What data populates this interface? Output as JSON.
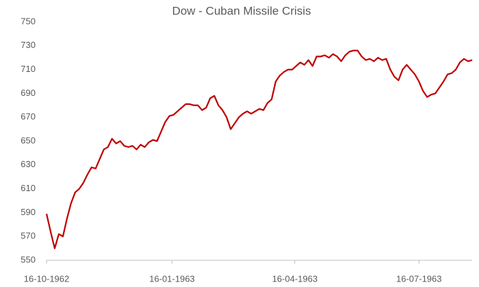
{
  "chart_data": {
    "type": "line",
    "title": "Dow - Cuban Missile Crisis",
    "x": [
      "16-10-1962",
      "19-10-1962",
      "22-10-1962",
      "25-10-1962",
      "28-10-1962",
      "31-10-1962",
      "03-11-1962",
      "06-11-1962",
      "09-11-1962",
      "12-11-1962",
      "15-11-1962",
      "18-11-1962",
      "21-11-1962",
      "24-11-1962",
      "27-11-1962",
      "30-11-1962",
      "03-12-1962",
      "06-12-1962",
      "09-12-1962",
      "12-12-1962",
      "15-12-1962",
      "18-12-1962",
      "21-12-1962",
      "24-12-1962",
      "27-12-1962",
      "30-12-1962",
      "02-01-1963",
      "05-01-1963",
      "08-01-1963",
      "11-01-1963",
      "14-01-1963",
      "17-01-1963",
      "20-01-1963",
      "23-01-1963",
      "26-01-1963",
      "29-01-1963",
      "01-02-1963",
      "04-02-1963",
      "07-02-1963",
      "10-02-1963",
      "13-02-1963",
      "16-02-1963",
      "19-02-1963",
      "22-02-1963",
      "25-02-1963",
      "28-02-1963",
      "03-03-1963",
      "06-03-1963",
      "09-03-1963",
      "12-03-1963",
      "15-03-1963",
      "18-03-1963",
      "21-03-1963",
      "24-03-1963",
      "27-03-1963",
      "30-03-1963",
      "02-04-1963",
      "05-04-1963",
      "08-04-1963",
      "11-04-1963",
      "14-04-1963",
      "17-04-1963",
      "20-04-1963",
      "23-04-1963",
      "26-04-1963",
      "29-04-1963",
      "02-05-1963",
      "05-05-1963",
      "08-05-1963",
      "11-05-1963",
      "14-05-1963",
      "17-05-1963",
      "20-05-1963",
      "23-05-1963",
      "26-05-1963",
      "29-05-1963",
      "01-06-1963",
      "04-06-1963",
      "07-06-1963",
      "10-06-1963",
      "13-06-1963",
      "16-06-1963",
      "19-06-1963",
      "22-06-1963",
      "25-06-1963",
      "28-06-1963",
      "01-07-1963",
      "04-07-1963",
      "07-07-1963",
      "10-07-1963",
      "13-07-1963",
      "16-07-1963",
      "19-07-1963",
      "22-07-1963",
      "25-07-1963",
      "28-07-1963",
      "31-07-1963",
      "03-08-1963",
      "06-08-1963",
      "09-08-1963",
      "12-08-1963",
      "15-08-1963",
      "18-08-1963",
      "21-08-1963",
      "24-08-1963"
    ],
    "series": [
      {
        "name": "Dow",
        "color": "#c00000",
        "values": [
          589,
          574,
          560,
          572,
          570,
          585,
          598,
          607,
          610,
          615,
          622,
          628,
          627,
          635,
          643,
          645,
          652,
          648,
          650,
          646,
          645,
          646,
          643,
          647,
          645,
          649,
          651,
          650,
          658,
          666,
          671,
          672,
          675,
          678,
          681,
          681,
          680,
          680,
          676,
          678,
          686,
          688,
          680,
          676,
          670,
          660,
          665,
          670,
          673,
          675,
          673,
          675,
          677,
          676,
          682,
          685,
          700,
          705,
          708,
          710,
          710,
          713,
          716,
          714,
          718,
          713,
          721,
          721,
          722,
          720,
          723,
          721,
          717,
          722,
          725,
          726,
          726,
          721,
          718,
          719,
          717,
          720,
          718,
          719,
          710,
          704,
          701,
          710,
          714,
          710,
          706,
          700,
          692,
          687,
          689,
          690,
          695,
          700,
          706,
          707,
          710,
          716,
          719,
          717,
          718
        ]
      }
    ],
    "xlim": [
      "16-10-1962",
      "24-08-1963"
    ],
    "xticks": [
      "16-10-1962",
      "16-01-1963",
      "16-04-1963",
      "16-07-1963"
    ],
    "ylim": [
      550,
      750
    ],
    "yticks": [
      550,
      570,
      590,
      610,
      630,
      650,
      670,
      690,
      710,
      730,
      750
    ],
    "grid": false
  }
}
